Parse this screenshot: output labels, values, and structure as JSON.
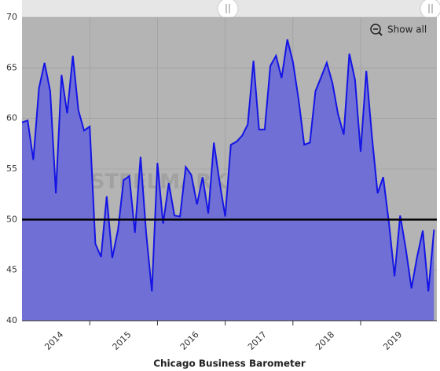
{
  "chart_data": {
    "type": "line",
    "x_label": "Chicago Business Barometer",
    "watermark": "STEELMARKET UPDATE",
    "button": "Show all",
    "x": [
      2014.0,
      2014.083,
      2014.167,
      2014.25,
      2014.333,
      2014.417,
      2014.5,
      2014.583,
      2014.667,
      2014.75,
      2014.833,
      2014.917,
      2015.0,
      2015.083,
      2015.167,
      2015.25,
      2015.333,
      2015.417,
      2015.5,
      2015.583,
      2015.667,
      2015.75,
      2015.833,
      2015.917,
      2016.0,
      2016.083,
      2016.167,
      2016.25,
      2016.333,
      2016.417,
      2016.5,
      2016.583,
      2016.667,
      2016.75,
      2016.833,
      2016.917,
      2017.0,
      2017.083,
      2017.167,
      2017.25,
      2017.333,
      2017.417,
      2017.5,
      2017.583,
      2017.667,
      2017.75,
      2017.833,
      2017.917,
      2018.0,
      2018.083,
      2018.167,
      2018.25,
      2018.333,
      2018.417,
      2018.5,
      2018.583,
      2018.667,
      2018.75,
      2018.833,
      2018.917,
      2019.0,
      2019.083,
      2019.167,
      2019.25,
      2019.333,
      2019.417,
      2019.5,
      2019.583,
      2019.667,
      2019.75,
      2019.833,
      2019.917,
      2020.0,
      2020.083
    ],
    "values": [
      59.6,
      59.8,
      55.9,
      63.0,
      65.5,
      62.7,
      52.6,
      64.3,
      60.5,
      66.2,
      60.8,
      58.8,
      59.2,
      47.6,
      46.3,
      52.3,
      46.2,
      49.0,
      53.9,
      54.3,
      48.7,
      56.2,
      48.7,
      42.9,
      55.6,
      49.6,
      53.6,
      50.4,
      50.3,
      55.2,
      54.4,
      51.5,
      54.2,
      50.6,
      57.6,
      53.7,
      50.3,
      57.4,
      57.7,
      58.3,
      59.4,
      65.7,
      58.9,
      58.9,
      65.2,
      66.2,
      64.0,
      67.8,
      65.6,
      61.9,
      57.4,
      57.6,
      62.7,
      64.1,
      65.5,
      63.5,
      60.4,
      58.4,
      66.4,
      63.8,
      56.7,
      64.7,
      58.2,
      52.6,
      54.2,
      49.7,
      44.4,
      50.4,
      47.1,
      43.2,
      46.3,
      48.9,
      42.9,
      49.0
    ],
    "color": "#1414e6",
    "fill_color": "#6f6fd6",
    "background": "#b4b4b4",
    "reference_line": 50,
    "xlim": [
      2014,
      2020.125
    ],
    "xticks": [
      {
        "value": 2014.5,
        "label": "2014"
      },
      {
        "value": 2015.5,
        "label": "2015"
      },
      {
        "value": 2016.5,
        "label": "2016"
      },
      {
        "value": 2017.5,
        "label": "2017"
      },
      {
        "value": 2018.5,
        "label": "2018"
      },
      {
        "value": 2019.5,
        "label": "2019"
      }
    ],
    "xgrid": [
      2015,
      2016,
      2017,
      2018,
      2019
    ],
    "ylim": [
      40,
      70
    ],
    "yticks": [
      40,
      45,
      50,
      55,
      60,
      65,
      70
    ],
    "grid": true
  }
}
